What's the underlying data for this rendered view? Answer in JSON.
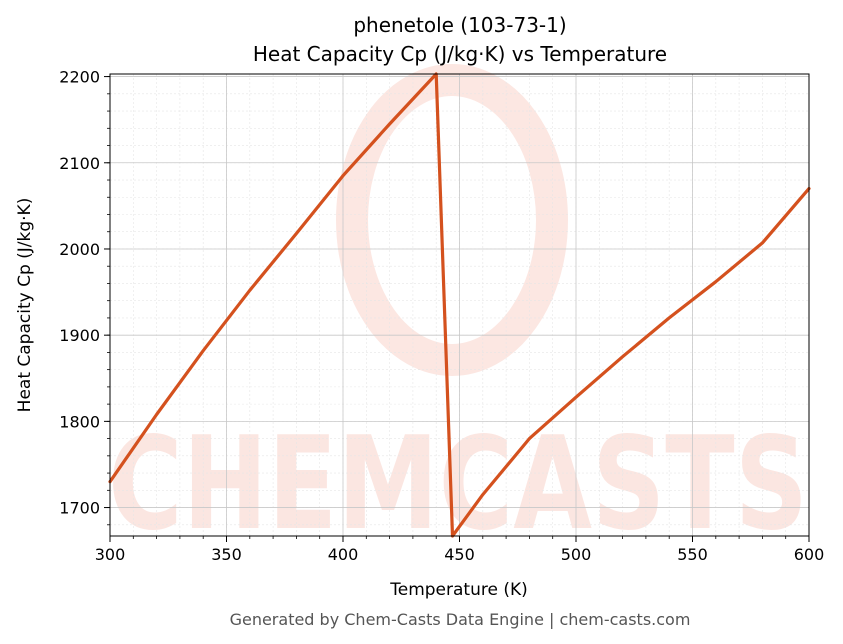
{
  "chart_data": {
    "type": "line",
    "title_line1": "phenetole (103-73-1)",
    "title_line2": "Heat Capacity Cp (J/kg·K) vs Temperature",
    "xlabel": "Temperature (K)",
    "ylabel": "Heat Capacity Cp (J/kg·K)",
    "xlim": [
      300,
      600
    ],
    "ylim": [
      1667,
      2203
    ],
    "x_ticks": [
      300,
      350,
      400,
      450,
      500,
      550,
      600
    ],
    "y_ticks": [
      1700,
      1800,
      1900,
      2000,
      2100,
      2200
    ],
    "grid": true,
    "series": [
      {
        "color": "#d4511e",
        "points": [
          [
            300,
            1730
          ],
          [
            320,
            1808
          ],
          [
            340,
            1882
          ],
          [
            360,
            1952
          ],
          [
            380,
            2018
          ],
          [
            400,
            2085
          ],
          [
            420,
            2145
          ],
          [
            440,
            2203
          ],
          [
            447,
            1667
          ],
          [
            460,
            1715
          ],
          [
            480,
            1780
          ],
          [
            500,
            1828
          ],
          [
            520,
            1875
          ],
          [
            540,
            1920
          ],
          [
            560,
            1962
          ],
          [
            580,
            2007
          ],
          [
            600,
            2070
          ]
        ]
      }
    ]
  },
  "watermark": "CHEMCASTS",
  "footer": "Generated by Chem-Casts Data Engine | chem-casts.com"
}
